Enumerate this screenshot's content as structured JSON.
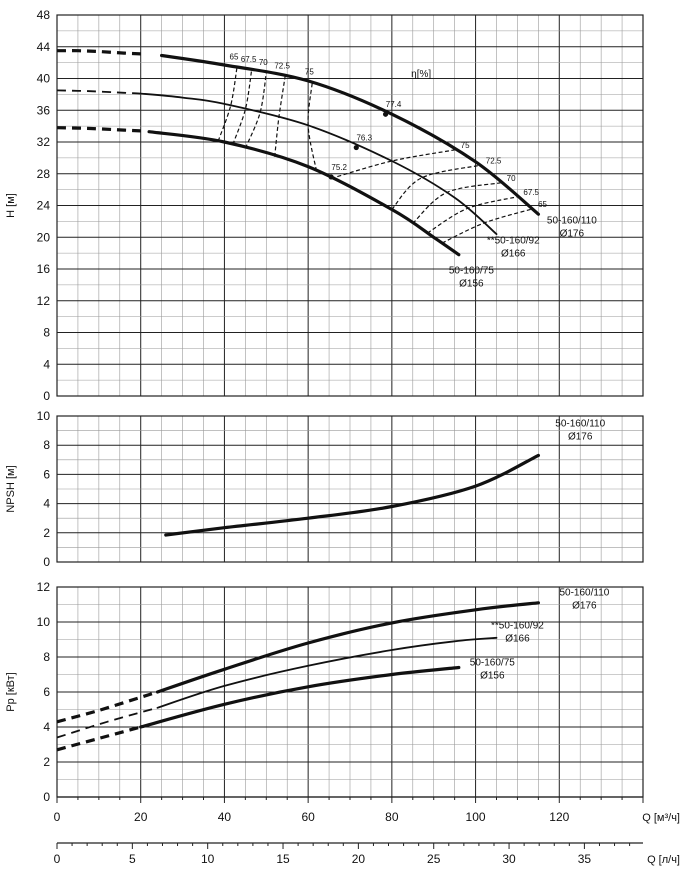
{
  "chart_data": [
    {
      "type": "line",
      "name": "head",
      "xlabel": "Q [м³/ч]",
      "ylabel": "H [м]",
      "xlim": [
        0,
        140
      ],
      "ylim": [
        0,
        48
      ],
      "yticks": [
        "0",
        "4",
        "8",
        "12",
        "16",
        "20",
        "24",
        "28",
        "32",
        "36",
        "40",
        "44",
        "48"
      ],
      "series": [
        {
          "name": "50-160/110 Ø176",
          "weight": "bold",
          "dashed": [
            [
              0,
              43.5
            ],
            [
              5,
              43.5
            ],
            [
              10,
              43.4
            ],
            [
              16,
              43.2
            ],
            [
              20,
              43.1
            ]
          ],
          "values": [
            [
              25,
              42.9
            ],
            [
              40,
              41.7
            ],
            [
              60,
              39.7
            ],
            [
              80,
              35.5
            ],
            [
              100,
              29.5
            ],
            [
              115,
              22.9
            ]
          ]
        },
        {
          "name": "**50-160/92 Ø166",
          "weight": "normal",
          "dashed": [
            [
              0,
              38.5
            ],
            [
              8,
              38.4
            ],
            [
              16,
              38.2
            ],
            [
              20,
              38.1
            ]
          ],
          "values": [
            [
              20,
              38.1
            ],
            [
              30,
              37.6
            ],
            [
              40,
              36.8
            ],
            [
              60,
              34.1
            ],
            [
              80,
              29.6
            ],
            [
              95,
              25.0
            ],
            [
              105,
              20.4
            ]
          ]
        },
        {
          "name": "50-160/75 Ø156",
          "weight": "bold",
          "dashed": [
            [
              0,
              33.8
            ],
            [
              8,
              33.7
            ],
            [
              16,
              33.5
            ],
            [
              20,
              33.4
            ]
          ],
          "values": [
            [
              22,
              33.3
            ],
            [
              40,
              32.0
            ],
            [
              60,
              28.9
            ],
            [
              80,
              23.5
            ],
            [
              90,
              20.0
            ],
            [
              96,
              17.8
            ]
          ]
        }
      ],
      "bep": [
        {
          "label": "77.4",
          "q": 78.5,
          "h": 35.5
        },
        {
          "label": "76.3",
          "q": 71.5,
          "h": 31.3
        },
        {
          "label": "75.2",
          "q": 65.5,
          "h": 27.6
        }
      ],
      "efficiency_title": "η[%]",
      "efficiency_left": [
        "65",
        "67.5",
        "70",
        "72.5",
        "75"
      ],
      "efficiency_right": [
        "75",
        "72.5",
        "70",
        "67.5",
        "65"
      ],
      "labels": [
        {
          "text": "50-160/110",
          "sub": "Ø176"
        },
        {
          "text": "**50-160/92",
          "sub": "Ø166"
        },
        {
          "text": "50-160/75",
          "sub": "Ø156"
        }
      ]
    },
    {
      "type": "line",
      "name": "npsh",
      "ylabel": "NPSH [м]",
      "xlim": [
        0,
        140
      ],
      "ylim": [
        0,
        10
      ],
      "yticks": [
        "0",
        "2",
        "4",
        "6",
        "8",
        "10"
      ],
      "series": [
        {
          "name": "50-160/110 Ø176",
          "values": [
            [
              26,
              1.85
            ],
            [
              40,
              2.35
            ],
            [
              60,
              3.0
            ],
            [
              80,
              3.8
            ],
            [
              100,
              5.2
            ],
            [
              115,
              7.3
            ]
          ]
        }
      ],
      "labels": [
        {
          "text": "50-160/110",
          "sub": "Ø176"
        }
      ]
    },
    {
      "type": "line",
      "name": "power",
      "ylabel": "Pp [кВт]",
      "xlim": [
        0,
        140
      ],
      "ylim": [
        0,
        12
      ],
      "yticks": [
        "0",
        "2",
        "4",
        "6",
        "8",
        "10",
        "12"
      ],
      "series": [
        {
          "name": "50-160/110 Ø176",
          "weight": "bold",
          "dashed": [
            [
              0,
              4.3
            ],
            [
              10,
              4.95
            ],
            [
              20,
              5.7
            ],
            [
              24,
              6.0
            ]
          ],
          "values": [
            [
              24,
              6.0
            ],
            [
              40,
              7.3
            ],
            [
              60,
              8.8
            ],
            [
              80,
              9.95
            ],
            [
              100,
              10.7
            ],
            [
              115,
              11.1
            ]
          ]
        },
        {
          "name": "**50-160/92 Ø166",
          "weight": "normal",
          "dashed": [
            [
              0,
              3.4
            ],
            [
              12,
              4.3
            ],
            [
              24,
              5.1
            ]
          ],
          "values": [
            [
              24,
              5.1
            ],
            [
              40,
              6.35
            ],
            [
              60,
              7.5
            ],
            [
              80,
              8.4
            ],
            [
              95,
              8.9
            ],
            [
              105,
              9.1
            ]
          ]
        },
        {
          "name": "50-160/75 Ø156",
          "weight": "bold",
          "dashed": [
            [
              0,
              2.7
            ],
            [
              10,
              3.35
            ],
            [
              20,
              4.0
            ]
          ],
          "values": [
            [
              20,
              4.0
            ],
            [
              40,
              5.3
            ],
            [
              60,
              6.3
            ],
            [
              80,
              7.0
            ],
            [
              96,
              7.4
            ]
          ]
        }
      ],
      "labels": [
        {
          "text": "50-160/110",
          "sub": "Ø176"
        },
        {
          "text": "**50-160/92",
          "sub": "Ø166"
        },
        {
          "text": "50-160/75",
          "sub": "Ø156"
        }
      ]
    }
  ],
  "x_axis_primary": {
    "label": "Q [м³/ч]",
    "ticks": [
      "0",
      "20",
      "40",
      "60",
      "80",
      "100",
      "120"
    ]
  },
  "x_axis_secondary": {
    "label": "Q [л/ч]",
    "ticks": [
      "0",
      "5",
      "10",
      "15",
      "20",
      "25",
      "30",
      "35"
    ]
  }
}
